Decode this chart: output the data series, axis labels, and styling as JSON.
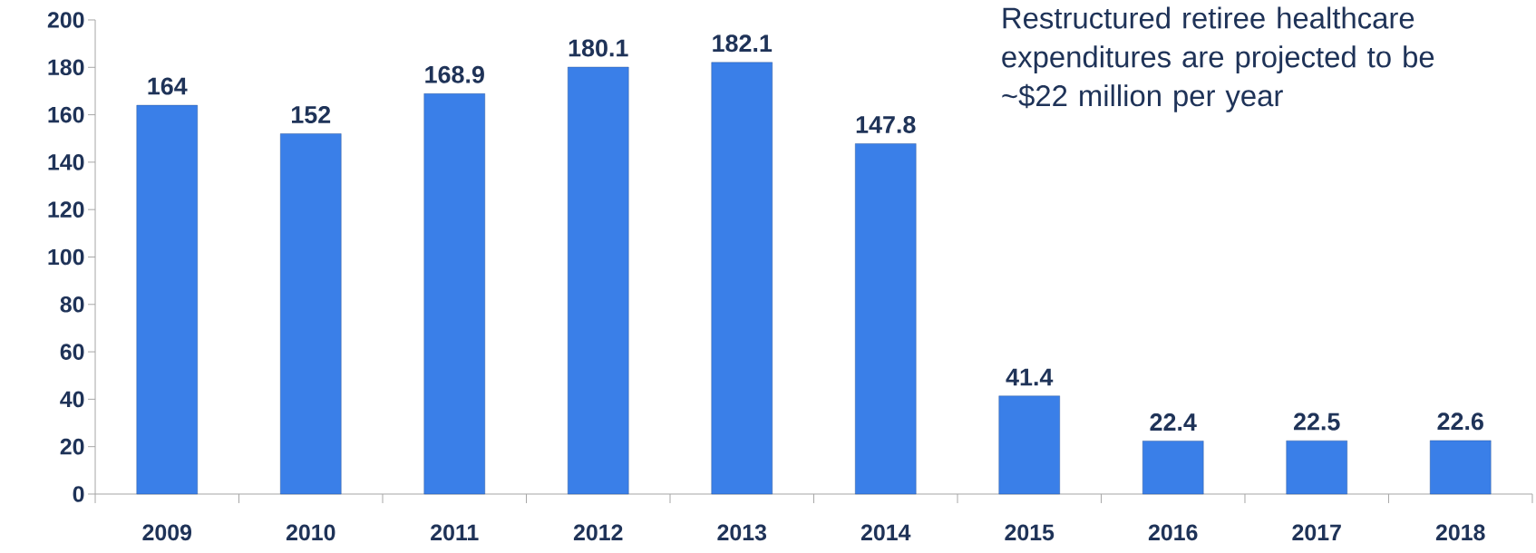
{
  "chart_data": {
    "type": "bar",
    "categories": [
      "2009",
      "2010",
      "2011",
      "2012",
      "2013",
      "2014",
      "2015",
      "2016",
      "2017",
      "2018"
    ],
    "values": [
      164,
      152,
      168.9,
      180.1,
      182.1,
      147.8,
      41.4,
      22.4,
      22.5,
      22.6
    ],
    "color": "#3a7fe8",
    "ylim": [
      0,
      200
    ],
    "yticks": [
      0,
      20,
      40,
      60,
      80,
      100,
      120,
      140,
      160,
      180,
      200
    ],
    "data_labels": true,
    "annotations": [
      "Restructured retiree healthcare expenditures are projected to be ~$22 million per year"
    ]
  }
}
